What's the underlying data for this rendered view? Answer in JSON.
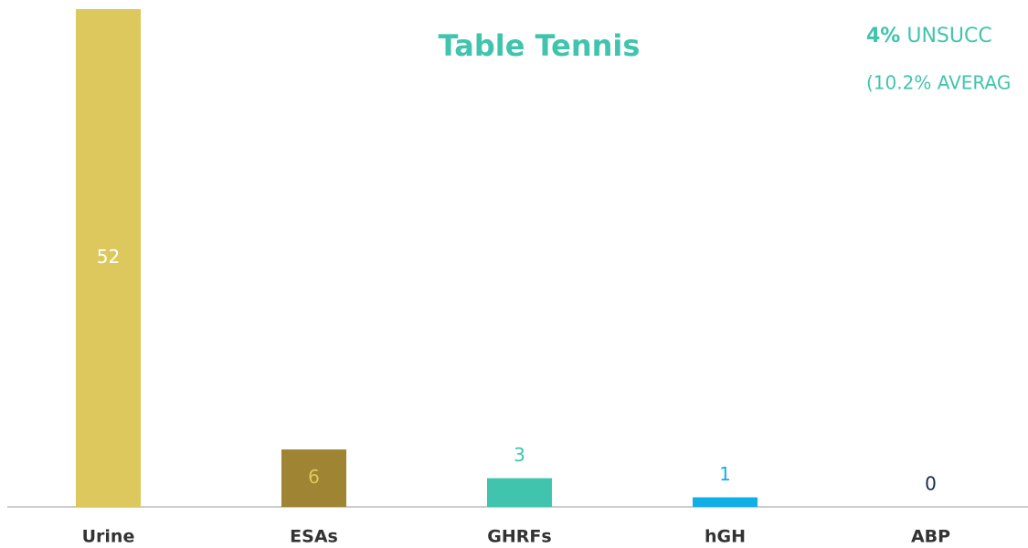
{
  "chart_data": {
    "type": "bar",
    "title": "Table Tennis",
    "annotations": [
      {
        "bold": "4%",
        "text": "UNSUCC"
      },
      {
        "text": "(10.2% AVERAG"
      }
    ],
    "categories": [
      "Urine",
      "ESAs",
      "GHRFs",
      "hGH",
      "ABP"
    ],
    "values": [
      52,
      6,
      3,
      1,
      0
    ],
    "colors": [
      "#dcc85c",
      "#9e8433",
      "#40c4ad",
      "#12aee8",
      "#1b2a4a"
    ],
    "label_colors": [
      "#ffffff",
      "#dcc85c",
      "#40c4ad",
      "#12aee8",
      "#1b2a4a"
    ],
    "ylim": [
      0,
      52
    ]
  }
}
